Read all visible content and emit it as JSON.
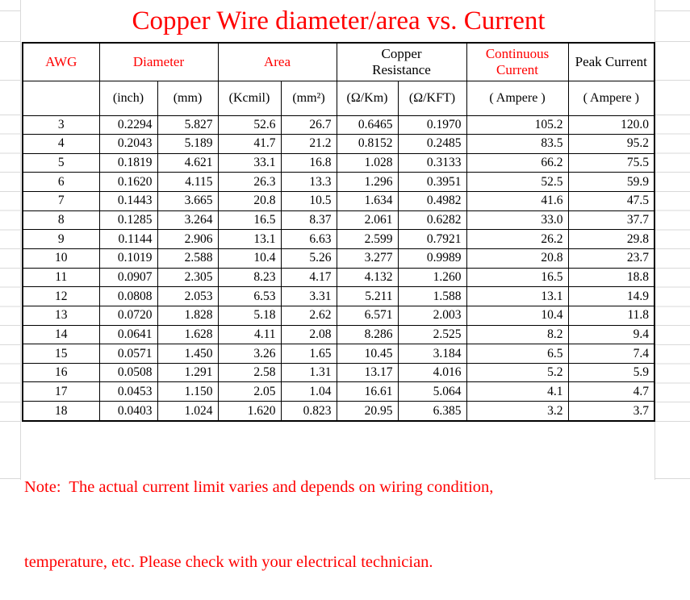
{
  "title": "Copper Wire diameter/area vs. Current",
  "colors": {
    "accent_red": "#ff0000",
    "text_black": "#000000",
    "grid_faint": "#d9d9d9",
    "table_border": "#000000"
  },
  "table": {
    "header_groups": {
      "awg": "AWG",
      "diameter": "Diameter",
      "area": "Area",
      "copper_resistance": "Copper\nResistance",
      "continuous_current": "Continuous\nCurrent",
      "peak_current": "Peak Current"
    },
    "subheaders": {
      "inch": "(inch)",
      "mm": "(mm)",
      "kcmil": "(Kcmil)",
      "mm2": "(mm²)",
      "ohm_km": "(Ω/Km)",
      "ohm_kft": "(Ω/KFT)",
      "continuous_ampere": "( Ampere )",
      "peak_ampere": "( Ampere )"
    },
    "columns": [
      "AWG",
      "Diameter (inch)",
      "Diameter (mm)",
      "Area (Kcmil)",
      "Area (mm²)",
      "Copper Resistance (Ω/Km)",
      "Copper Resistance (Ω/KFT)",
      "Continuous Current (Ampere)",
      "Peak Current (Ampere)"
    ],
    "rows": [
      [
        "3",
        "0.2294",
        "5.827",
        "52.6",
        "26.7",
        "0.6465",
        "0.1970",
        "105.2",
        "120.0"
      ],
      [
        "4",
        "0.2043",
        "5.189",
        "41.7",
        "21.2",
        "0.8152",
        "0.2485",
        "83.5",
        "95.2"
      ],
      [
        "5",
        "0.1819",
        "4.621",
        "33.1",
        "16.8",
        "1.028",
        "0.3133",
        "66.2",
        "75.5"
      ],
      [
        "6",
        "0.1620",
        "4.115",
        "26.3",
        "13.3",
        "1.296",
        "0.3951",
        "52.5",
        "59.9"
      ],
      [
        "7",
        "0.1443",
        "3.665",
        "20.8",
        "10.5",
        "1.634",
        "0.4982",
        "41.6",
        "47.5"
      ],
      [
        "8",
        "0.1285",
        "3.264",
        "16.5",
        "8.37",
        "2.061",
        "0.6282",
        "33.0",
        "37.7"
      ],
      [
        "9",
        "0.1144",
        "2.906",
        "13.1",
        "6.63",
        "2.599",
        "0.7921",
        "26.2",
        "29.8"
      ],
      [
        "10",
        "0.1019",
        "2.588",
        "10.4",
        "5.26",
        "3.277",
        "0.9989",
        "20.8",
        "23.7"
      ],
      [
        "11",
        "0.0907",
        "2.305",
        "8.23",
        "4.17",
        "4.132",
        "1.260",
        "16.5",
        "18.8"
      ],
      [
        "12",
        "0.0808",
        "2.053",
        "6.53",
        "3.31",
        "5.211",
        "1.588",
        "13.1",
        "14.9"
      ],
      [
        "13",
        "0.0720",
        "1.828",
        "5.18",
        "2.62",
        "6.571",
        "2.003",
        "10.4",
        "11.8"
      ],
      [
        "14",
        "0.0641",
        "1.628",
        "4.11",
        "2.08",
        "8.286",
        "2.525",
        "8.2",
        "9.4"
      ],
      [
        "15",
        "0.0571",
        "1.450",
        "3.26",
        "1.65",
        "10.45",
        "3.184",
        "6.5",
        "7.4"
      ],
      [
        "16",
        "0.0508",
        "1.291",
        "2.58",
        "1.31",
        "13.17",
        "4.016",
        "5.2",
        "5.9"
      ],
      [
        "17",
        "0.0453",
        "1.150",
        "2.05",
        "1.04",
        "16.61",
        "5.064",
        "4.1",
        "4.7"
      ],
      [
        "18",
        "0.0403",
        "1.024",
        "1.620",
        "0.823",
        "20.95",
        "6.385",
        "3.2",
        "3.7"
      ]
    ]
  },
  "note": {
    "line1": "Note:  The actual current limit varies and depends on wiring condition,",
    "line2": "temperature, etc. Please check with your electrical technician."
  }
}
